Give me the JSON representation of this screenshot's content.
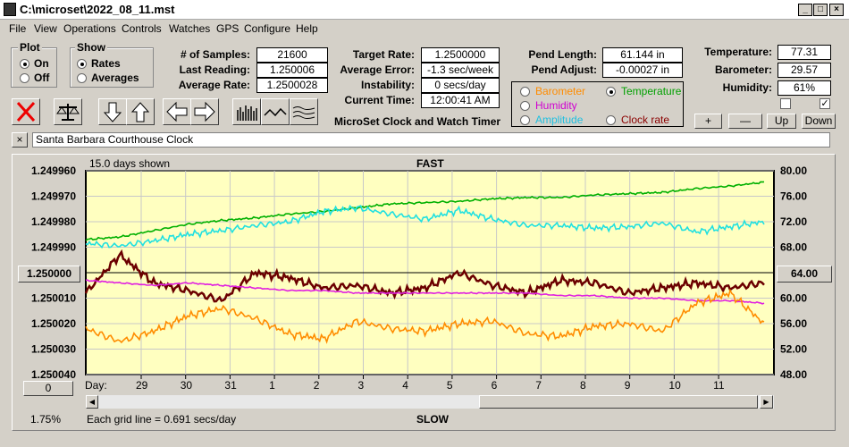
{
  "window": {
    "title": "C:\\microset\\2022_08_11.mst"
  },
  "menu": [
    "File",
    "View",
    "Operations",
    "Controls",
    "Watches",
    "GPS",
    "Configure",
    "Help"
  ],
  "plot_group": {
    "title": "Plot",
    "on": "On",
    "off": "Off",
    "selected": "On"
  },
  "show_group": {
    "title": "Show",
    "rates": "Rates",
    "averages": "Averages",
    "selected": "Rates"
  },
  "stats": {
    "samples_label": "# of Samples:",
    "samples": "21600",
    "last_label": "Last Reading:",
    "last": "1.250006",
    "avg_rate_label": "Average Rate:",
    "avg_rate": "1.2500028",
    "target_label": "Target Rate:",
    "target": "1.2500000",
    "avg_err_label": "Average Error:",
    "avg_err": "-1.3 sec/week",
    "instab_label": "Instability:",
    "instab": "0 secs/day",
    "time_label": "Current Time:",
    "time": "12:00:41 AM",
    "pend_len_label": "Pend Length:",
    "pend_len": "61.144 in",
    "pend_adj_label": "Pend Adjust:",
    "pend_adj": "-0.00027 in",
    "temp_label": "Temperature:",
    "temp": "77.31",
    "baro_label": "Barometer:",
    "baro": "29.57",
    "hum_label": "Humidity:",
    "hum": "61%"
  },
  "app_title": "MicroSet Clock and Watch Timer",
  "sensor_options": {
    "barometer": "Barometer",
    "temperature": "Temperature",
    "humidity": "Humidity",
    "amplitude": "Amplitude",
    "clock_rate": "Clock rate",
    "selected": "Temperature"
  },
  "small_buttons": {
    "plus": "+",
    "minus": "—",
    "up": "Up",
    "down": "Down"
  },
  "clock_name": "Santa Barbara Courthouse Clock",
  "chart_labels": {
    "days_shown": "15.0 days shown",
    "fast": "FAST",
    "slow": "SLOW",
    "grid_note": "Each grid line = 0.691 secs/day",
    "day_label": "Day:",
    "percent": "1.75%",
    "left_center_btn": "1.250000",
    "right_center_btn": "64.00",
    "zero_btn": "0"
  },
  "colors": {
    "plot_bg": "#ffffc0",
    "temp": "#00b000",
    "humidity": "#e020e0",
    "amplitude": "#20e0e0",
    "barometer": "#ff8c00",
    "rate": "#6b0000"
  },
  "chart_data": {
    "type": "line",
    "x_label": "Day",
    "x_ticks": [
      "29",
      "30",
      "31",
      "1",
      "2",
      "3",
      "4",
      "5",
      "6",
      "7",
      "8",
      "9",
      "10",
      "11"
    ],
    "y_left_ticks": [
      "1.249960",
      "1.249970",
      "1.249980",
      "1.249990",
      "1.250000",
      "1.250010",
      "1.250020",
      "1.250030",
      "1.250040"
    ],
    "y_left_range": [
      1.24996,
      1.25004
    ],
    "y_right_ticks": [
      "80.00",
      "76.00",
      "72.00",
      "68.00",
      "64.00",
      "60.00",
      "56.00",
      "52.00",
      "48.00"
    ],
    "y_right_range": [
      48,
      80
    ],
    "series": [
      {
        "color": "#00b000",
        "axis": "right",
        "values": [
          69.2,
          69.6,
          70.6,
          71.6,
          72.2,
          72.6,
          73.2,
          73.6,
          74.2,
          74.8,
          75.0,
          75.2,
          75.6,
          75.8,
          75.8,
          76.2,
          76.4,
          76.6,
          77.2,
          77.6,
          78.2
        ]
      },
      {
        "color": "#20e0e0",
        "axis": "right",
        "values": [
          68.6,
          68.2,
          69.0,
          70.0,
          70.6,
          71.4,
          72.0,
          73.6,
          74.2,
          73.2,
          72.4,
          73.8,
          72.4,
          71.4,
          71.4,
          71.0,
          71.2,
          71.8,
          70.4,
          71.2,
          72.0
        ]
      },
      {
        "color": "#6b0000",
        "axis": "left",
        "values": [
          1.250008,
          1.249993,
          1.250004,
          1.250007,
          1.250011,
          1.25,
          1.250002,
          1.250006,
          1.250005,
          1.250008,
          1.250006,
          1.25,
          1.250005,
          1.250008,
          1.250003,
          1.250004,
          1.250008,
          1.250006,
          1.250004,
          1.250006,
          1.250004
        ]
      },
      {
        "color": "#e020e0",
        "axis": "left",
        "values": [
          1.250003,
          1.250004,
          1.250005,
          1.250004,
          1.250005,
          1.250006,
          1.250007,
          1.250007,
          1.250008,
          1.250008,
          1.250008,
          1.250008,
          1.250008,
          1.250008,
          1.250009,
          1.250009,
          1.25001,
          1.25001,
          1.250011,
          1.250011,
          1.250012
        ]
      },
      {
        "color": "#ff8c00",
        "axis": "left",
        "values": [
          1.250022,
          1.250027,
          1.250023,
          1.250017,
          1.250014,
          1.250018,
          1.250024,
          1.250026,
          1.250019,
          1.250022,
          1.250023,
          1.25002,
          1.250019,
          1.250024,
          1.250025,
          1.250021,
          1.25002,
          1.250023,
          1.250012,
          1.250008,
          1.25002
        ]
      }
    ]
  }
}
